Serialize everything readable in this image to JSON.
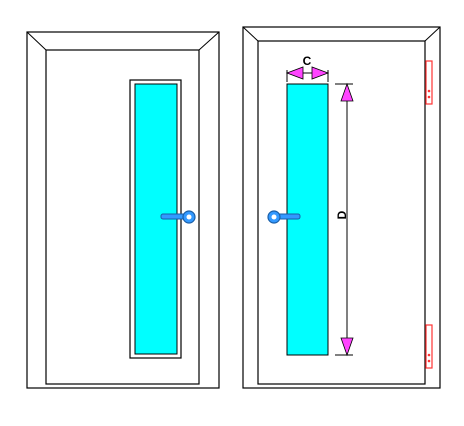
{
  "diagram": {
    "labels": {
      "width_dimension": "C",
      "height_dimension": "D"
    },
    "colors": {
      "glass": "#00ffff",
      "handle": "#3399ff",
      "arrow": "#ff44ff",
      "hinge": "#ff3333",
      "line": "#000000"
    }
  }
}
